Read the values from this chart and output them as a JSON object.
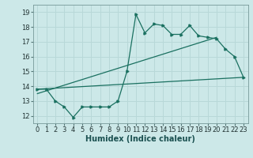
{
  "xlabel": "Humidex (Indice chaleur)",
  "bg_color": "#cce8e8",
  "grid_color": "#b8d8d8",
  "line_color": "#1a7060",
  "xlim": [
    -0.5,
    23.5
  ],
  "ylim": [
    11.5,
    19.5
  ],
  "yticks": [
    12,
    13,
    14,
    15,
    16,
    17,
    18,
    19
  ],
  "xticks": [
    0,
    1,
    2,
    3,
    4,
    5,
    6,
    7,
    8,
    9,
    10,
    11,
    12,
    13,
    14,
    15,
    16,
    17,
    18,
    19,
    20,
    21,
    22,
    23
  ],
  "line1_x": [
    0,
    1,
    2,
    3,
    4,
    5,
    6,
    7,
    8,
    9,
    10,
    11,
    12,
    13,
    14,
    15,
    16,
    17,
    18,
    19,
    20,
    21,
    22,
    23
  ],
  "line1_y": [
    13.8,
    13.8,
    13.0,
    12.6,
    11.9,
    12.6,
    12.6,
    12.6,
    12.6,
    13.0,
    15.0,
    18.85,
    17.6,
    18.2,
    18.1,
    17.5,
    17.5,
    18.1,
    17.4,
    17.3,
    17.2,
    16.5,
    16.0,
    14.6
  ],
  "line2_x": [
    0,
    23
  ],
  "line2_y": [
    13.8,
    14.6
  ],
  "line3_x": [
    0,
    20
  ],
  "line3_y": [
    13.5,
    17.3
  ],
  "xlabel_fontsize": 7,
  "tick_fontsize": 6
}
